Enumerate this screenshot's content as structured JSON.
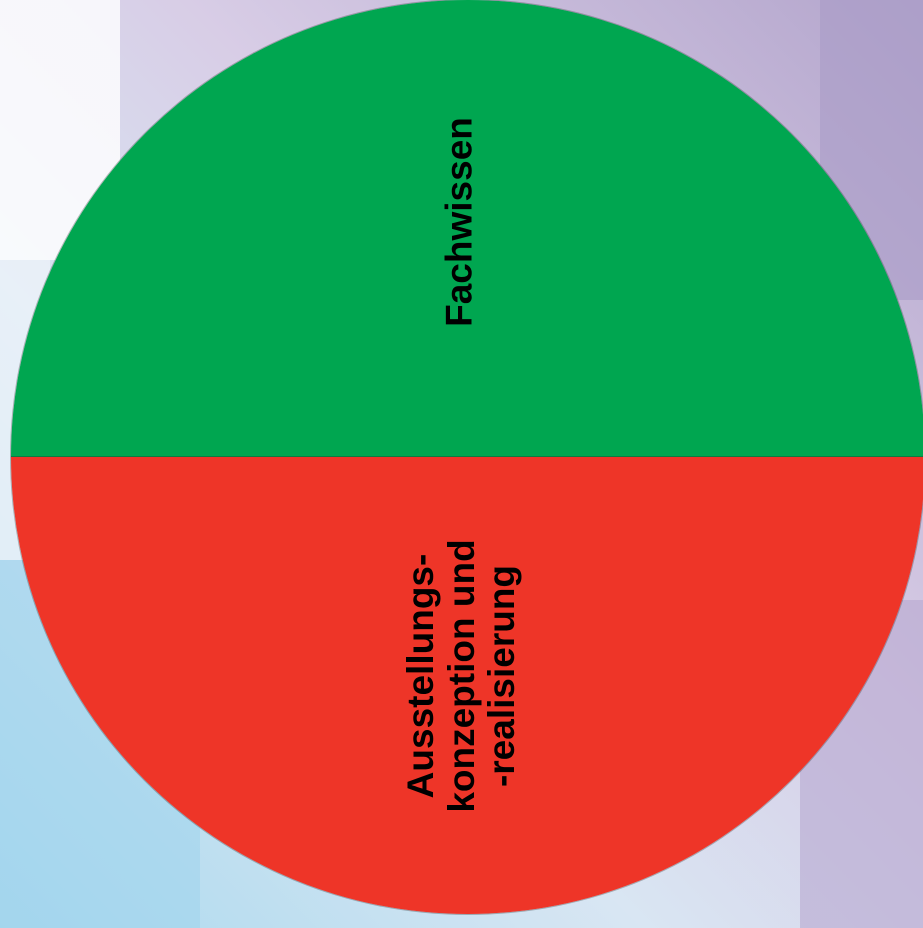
{
  "colors": {
    "top_segment": "#00a650",
    "bottom_segment": "#ee3528",
    "text": "#000000"
  },
  "segments": [
    {
      "id": "fachwissen",
      "lines": [
        "Fachwissen"
      ]
    },
    {
      "id": "ausstellung",
      "lines": [
        "Ausstellungs-",
        "konzeption und",
        "-realisierung"
      ]
    }
  ]
}
